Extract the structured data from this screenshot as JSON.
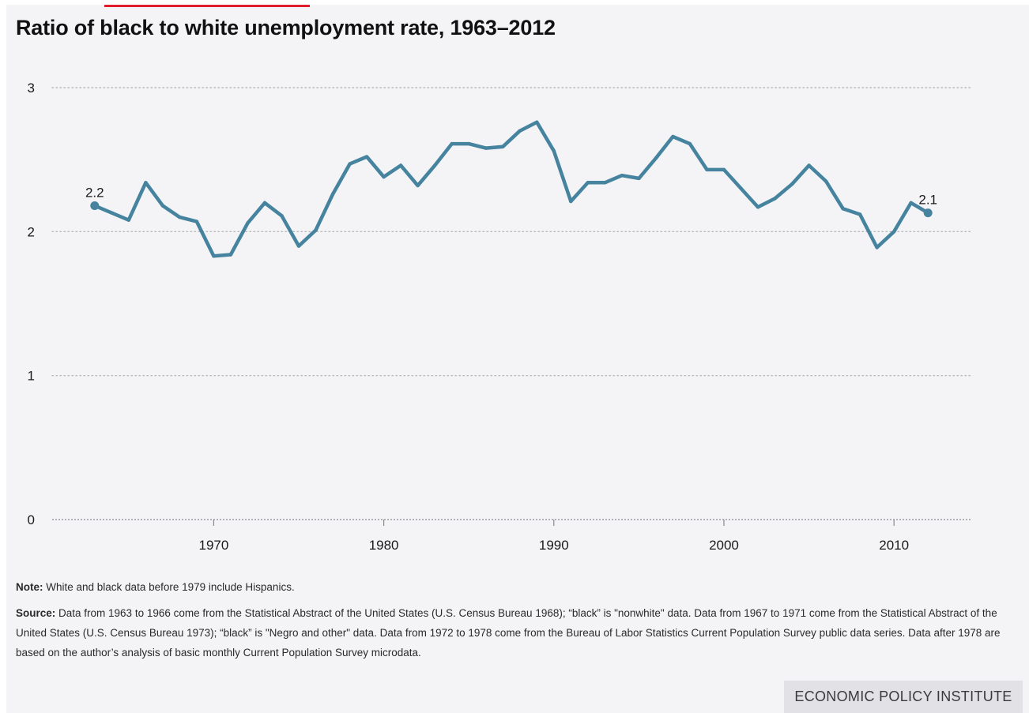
{
  "title": "Ratio of black to white unemployment rate, 1963–2012",
  "note": {
    "lead": "Note:",
    "text": " White and black data before 1979 include Hispanics."
  },
  "source": {
    "lead": "Source:",
    "text": " Data from 1963 to 1966 come from the Statistical Abstract of the United States (U.S. Census Bureau 1968); “black” is \"nonwhite\" data. Data from 1967 to 1971 come from the Statistical Abstract of the United States (U.S. Census Bureau 1973); “black” is \"Negro and other\" data. Data from 1972 to 1978 come from the Bureau of Labor Statistics Current Population Survey public data series. Data after 1978 are based on the author’s analysis of basic monthly Current Population Survey microdata."
  },
  "brand": "ECONOMIC POLICY INSTITUTE",
  "colors": {
    "line": "#45839e",
    "accent": "#e21d2b",
    "background": "#f4f4f7",
    "grid": "#b9b9bd"
  },
  "chart_data": {
    "type": "line",
    "title": "Ratio of black to white unemployment rate, 1963–2012",
    "xlabel": "",
    "ylabel": "",
    "xlim": [
      1960.5,
      2014.5
    ],
    "ylim": [
      0,
      3
    ],
    "x_ticks": [
      1970,
      1980,
      1990,
      2000,
      2010
    ],
    "y_ticks": [
      0,
      1,
      2,
      3
    ],
    "grid": "horizontal dotted",
    "legend": "none",
    "series": [
      {
        "x": [
          1963,
          1964,
          1965,
          1966,
          1967,
          1968,
          1969,
          1970,
          1971,
          1972,
          1973,
          1974,
          1975,
          1976,
          1977,
          1978,
          1979,
          1980,
          1981,
          1982,
          1983,
          1984,
          1985,
          1986,
          1987,
          1988,
          1989,
          1990,
          1991,
          1992,
          1993,
          1994,
          1995,
          1996,
          1997,
          1998,
          1999,
          2000,
          2001,
          2002,
          2003,
          2004,
          2005,
          2006,
          2007,
          2008,
          2009,
          2010,
          2011,
          2012
        ],
        "values": [
          2.18,
          2.13,
          2.08,
          2.34,
          2.18,
          2.1,
          2.07,
          1.83,
          1.84,
          2.06,
          2.2,
          2.11,
          1.9,
          2.01,
          2.26,
          2.47,
          2.52,
          2.38,
          2.46,
          2.32,
          2.46,
          2.61,
          2.61,
          2.58,
          2.59,
          2.7,
          2.76,
          2.56,
          2.21,
          2.34,
          2.34,
          2.39,
          2.37,
          2.51,
          2.66,
          2.61,
          2.43,
          2.43,
          2.3,
          2.17,
          2.23,
          2.33,
          2.46,
          2.35,
          2.16,
          2.12,
          1.89,
          2.0,
          2.2,
          2.13
        ]
      }
    ],
    "annotations": [
      {
        "x": 1963,
        "value": 2.18,
        "text": "2.2"
      },
      {
        "x": 2012,
        "value": 2.13,
        "text": "2.1"
      }
    ]
  }
}
